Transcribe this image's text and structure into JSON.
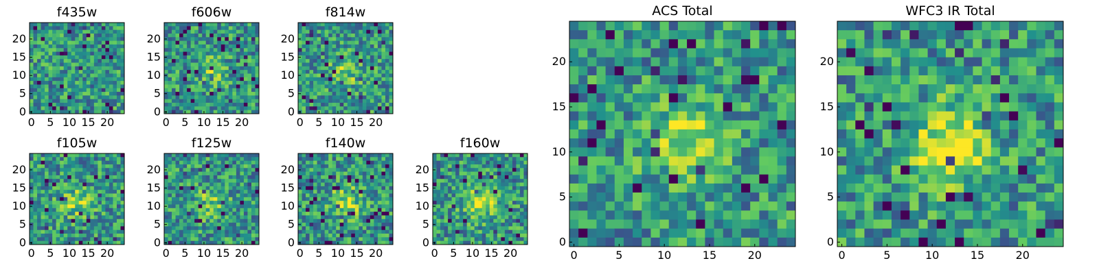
{
  "chart_data": [
    {
      "type": "heatmap",
      "title": "f435w",
      "size": 25,
      "xticks": [
        "0",
        "5",
        "10",
        "15",
        "20"
      ],
      "yticks": [
        "0",
        "5",
        "10",
        "15",
        "20"
      ],
      "seed": 11,
      "blob": 0.0
    },
    {
      "type": "heatmap",
      "title": "f606w",
      "size": 25,
      "xticks": [
        "0",
        "5",
        "10",
        "15",
        "20"
      ],
      "yticks": [
        "0",
        "5",
        "10",
        "15",
        "20"
      ],
      "seed": 23,
      "blob": 0.35
    },
    {
      "type": "heatmap",
      "title": "f814w",
      "size": 25,
      "xticks": [
        "0",
        "5",
        "10",
        "15",
        "20"
      ],
      "yticks": [
        "0",
        "5",
        "10",
        "15",
        "20"
      ],
      "seed": 37,
      "blob": 0.4
    },
    {
      "type": "heatmap",
      "title": "f105w",
      "size": 25,
      "xticks": [
        "0",
        "5",
        "10",
        "15",
        "20"
      ],
      "yticks": [
        "0",
        "5",
        "10",
        "15",
        "20"
      ],
      "seed": 41,
      "blob": 0.45
    },
    {
      "type": "heatmap",
      "title": "f125w",
      "size": 25,
      "xticks": [
        "0",
        "5",
        "10",
        "15",
        "20"
      ],
      "yticks": [
        "0",
        "5",
        "10",
        "15",
        "20"
      ],
      "seed": 53,
      "blob": 0.4
    },
    {
      "type": "heatmap",
      "title": "f140w",
      "size": 25,
      "xticks": [
        "0",
        "5",
        "10",
        "15",
        "20"
      ],
      "yticks": [
        "0",
        "5",
        "10",
        "15",
        "20"
      ],
      "seed": 67,
      "blob": 0.55
    },
    {
      "type": "heatmap",
      "title": "f160w",
      "size": 25,
      "xticks": [
        "0",
        "5",
        "10",
        "15",
        "20"
      ],
      "yticks": [
        "0",
        "5",
        "10",
        "15",
        "20"
      ],
      "seed": 79,
      "blob": 0.7
    },
    {
      "type": "heatmap",
      "title": "ACS Total",
      "size": 25,
      "xticks": [
        "0",
        "5",
        "10",
        "15",
        "20"
      ],
      "yticks": [
        "0",
        "5",
        "10",
        "15",
        "20"
      ],
      "seed": 83,
      "blob": 0.55
    },
    {
      "type": "heatmap",
      "title": "WFC3 IR Total",
      "size": 25,
      "xticks": [
        "0",
        "5",
        "10",
        "15",
        "20"
      ],
      "yticks": [
        "0",
        "5",
        "10",
        "15",
        "20"
      ],
      "seed": 97,
      "blob": 0.8
    }
  ],
  "colormap": [
    "#440154",
    "#3b528b",
    "#21918c",
    "#5ec962",
    "#fde725"
  ]
}
